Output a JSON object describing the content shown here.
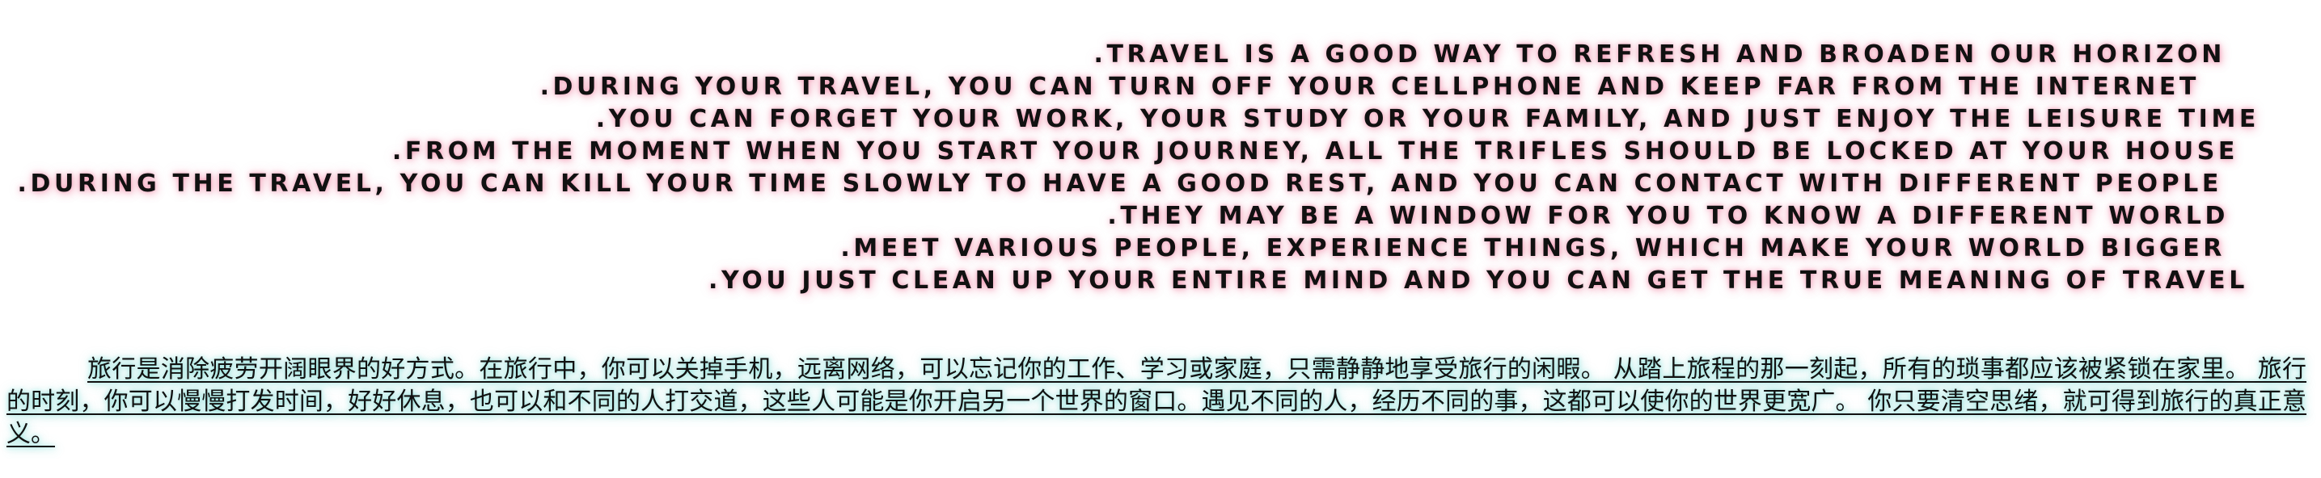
{
  "english_lines": [
    ".TRAVEL IS A GOOD WAY TO REFRESH AND BROADEN OUR HORIZON",
    ".DURING YOUR TRAVEL, YOU CAN TURN OFF YOUR CELLPHONE AND KEEP FAR FROM THE INTERNET",
    ".YOU CAN FORGET YOUR WORK, YOUR STUDY OR YOUR FAMILY, AND JUST ENJOY THE LEISURE TIME",
    ".FROM THE MOMENT WHEN YOU START YOUR JOURNEY, ALL THE TRIFLES SHOULD BE LOCKED AT YOUR HOUSE",
    ".DURING THE TRAVEL, YOU CAN KILL YOUR TIME SLOWLY TO HAVE A GOOD REST, AND YOU CAN CONTACT WITH DIFFERENT PEOPLE",
    ".THEY MAY BE A WINDOW FOR YOU TO KNOW A DIFFERENT WORLD",
    ".MEET VARIOUS PEOPLE, EXPERIENCE THINGS, WHICH MAKE YOUR WORLD BIGGER",
    ".YOU JUST CLEAN UP YOUR ENTIRE MIND AND YOU CAN GET THE TRUE MEANING OF TRAVEL"
  ],
  "chinese_paragraph": "旅行是消除疲劳开阔眼界的好方式。在旅行中，你可以关掉手机，远离网络，可以忘记你的工作、学习或家庭，只需静静地享受旅行的闲暇。 从踏上旅程的那一刻起，所有的琐事都应该被紧锁在家里。 旅行的时刻，你可以慢慢打发时间，好好休息，也可以和不同的人打交道，这些人可能是你开启另一个世界的窗口。遇见不同的人，经历不同的事，这都可以使你的世界更宽广。 你只要清空思绪，就可得到旅行的真正意义。",
  "colors": {
    "english_glow": "#f06e96",
    "chinese_glow": "#50d2c8",
    "text": "#111111"
  }
}
